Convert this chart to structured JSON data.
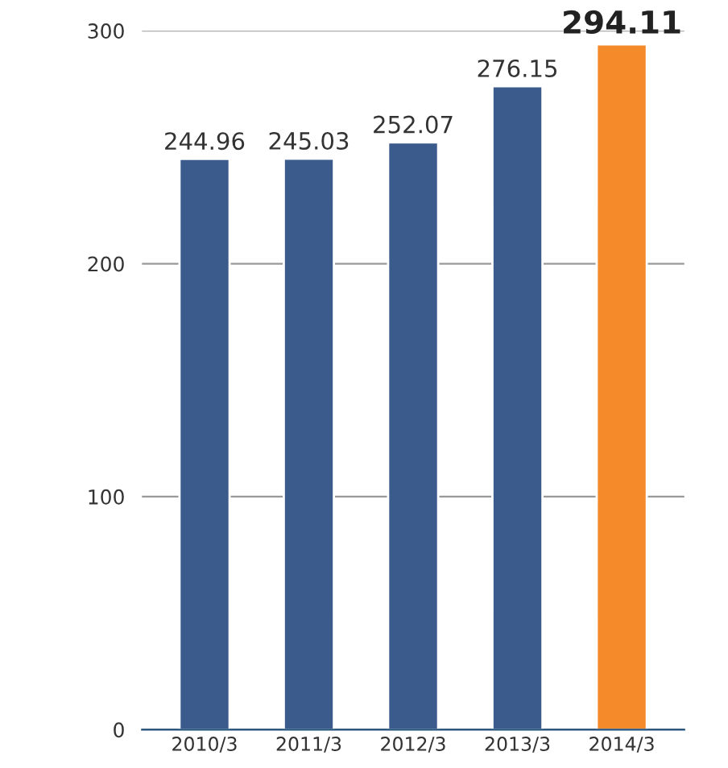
{
  "chart_data": {
    "type": "bar",
    "categories": [
      "2010/3",
      "2011/3",
      "2012/3",
      "2013/3",
      "2014/3"
    ],
    "values": [
      244.96,
      245.03,
      252.07,
      276.15,
      294.11
    ],
    "colors": [
      "#3b5b8c",
      "#3b5b8c",
      "#3b5b8c",
      "#3b5b8c",
      "#f58a2a"
    ],
    "ylim": [
      0,
      300
    ],
    "yticks": [
      0,
      100,
      200,
      300
    ],
    "grid": "y",
    "data_labels": true
  }
}
